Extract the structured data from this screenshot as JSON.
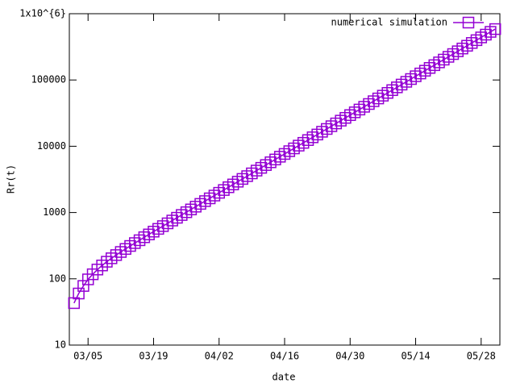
{
  "chart_data": {
    "type": "line",
    "xlabel": "date",
    "ylabel": "Rr(t)",
    "x": [
      "03/02",
      "03/03",
      "03/04",
      "03/05",
      "03/06",
      "03/07",
      "03/08",
      "03/09",
      "03/10",
      "03/11",
      "03/12",
      "03/13",
      "03/14",
      "03/15",
      "03/16",
      "03/17",
      "03/18",
      "03/19",
      "03/20",
      "03/21",
      "03/22",
      "03/23",
      "03/24",
      "03/25",
      "03/26",
      "03/27",
      "03/28",
      "03/29",
      "03/30",
      "03/31",
      "04/01",
      "04/02",
      "04/03",
      "04/04",
      "04/05",
      "04/06",
      "04/07",
      "04/08",
      "04/09",
      "04/10",
      "04/11",
      "04/12",
      "04/13",
      "04/14",
      "04/15",
      "04/16",
      "04/17",
      "04/18",
      "04/19",
      "04/20",
      "04/21",
      "04/22",
      "04/23",
      "04/24",
      "04/25",
      "04/26",
      "04/27",
      "04/28",
      "04/29",
      "04/30",
      "05/01",
      "05/02",
      "05/03",
      "05/04",
      "05/05",
      "05/06",
      "05/07",
      "05/08",
      "05/09",
      "05/10",
      "05/11",
      "05/12",
      "05/13",
      "05/14",
      "05/15",
      "05/16",
      "05/17",
      "05/18",
      "05/19",
      "05/20",
      "05/21",
      "05/22",
      "05/23",
      "05/24",
      "05/25",
      "05/26",
      "05/27",
      "05/28",
      "05/29",
      "05/30",
      "05/31"
    ],
    "series": [
      {
        "name": "numerical simulation",
        "color": "#9400d3",
        "values": [
          43,
          60,
          78,
          98,
          117,
          138,
          159,
          181,
          204,
          228,
          254,
          282,
          313,
          346,
          382,
          424,
          467,
          515,
          567,
          624,
          687,
          757,
          834,
          918,
          1011,
          1113,
          1226,
          1350,
          1487,
          1637,
          1803,
          1985,
          2186,
          2408,
          2651,
          2919,
          3215,
          3540,
          3898,
          4293,
          4727,
          5206,
          5732,
          6313,
          6951,
          7655,
          8430,
          9283,
          10222,
          11257,
          12396,
          13650,
          15032,
          16553,
          18228,
          20073,
          22104,
          24341,
          26805,
          29517,
          32504,
          35794,
          39416,
          43405,
          47797,
          52634,
          57961,
          63827,
          70286,
          77399,
          85232,
          93857,
          103355,
          113815,
          125333,
          138016,
          151983,
          167364,
          184301,
          202952,
          223490,
          246106,
          271011,
          298437,
          328638,
          361896,
          398519,
          438848,
          483258,
          532162,
          586015
        ]
      }
    ],
    "xlim": [
      "03/01",
      "06/01"
    ],
    "xticks": [
      "03/05",
      "03/19",
      "04/02",
      "04/16",
      "04/30",
      "05/14",
      "05/28"
    ],
    "ylim": [
      10,
      1000000
    ],
    "yticks": [
      10,
      100,
      1000,
      10000,
      100000,
      {
        "value": 1000000,
        "label": "1x10^{6}"
      }
    ],
    "yscale": "log",
    "grid": false,
    "legend": "upper right",
    "marker": "square"
  }
}
